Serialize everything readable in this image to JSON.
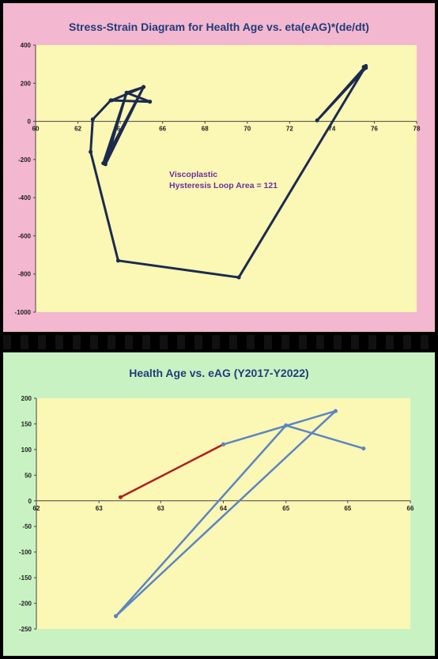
{
  "chart_data": [
    {
      "type": "line",
      "title": "Stress-Strain Diagram for Health Age vs. eta(eAG)*(de/dt)",
      "xlim": [
        60,
        78
      ],
      "ylim": [
        -1000,
        400
      ],
      "x_ticks": [
        60,
        62,
        64,
        66,
        68,
        70,
        72,
        74,
        76,
        78
      ],
      "y_ticks": [
        400,
        200,
        0,
        -200,
        -400,
        -600,
        -800,
        -1000
      ],
      "annotation": [
        "Viscoplastic",
        "Hysteresis Loop Area = 121"
      ],
      "grid": false,
      "colors": {
        "background": "#f3b7d0",
        "plot": "#fbf7b4",
        "line": "#1b2a4f"
      },
      "series": [
        {
          "points": [
            [
              65.4,
              103
            ],
            [
              63.55,
              110
            ],
            [
              62.7,
              10
            ],
            [
              62.6,
              -160
            ],
            [
              63.9,
              -730
            ],
            [
              69.6,
              -818
            ],
            [
              75.6,
              290
            ],
            [
              73.3,
              5
            ],
            [
              75.6,
              280
            ],
            [
              75.5,
              285
            ]
          ]
        },
        {
          "points": [
            [
              65.4,
              103
            ],
            [
              64.3,
              150
            ],
            [
              63.3,
              -225
            ],
            [
              65.1,
              180
            ],
            [
              63.2,
              -220
            ],
            [
              64.3,
              150
            ],
            [
              65.1,
              180
            ],
            [
              63.6,
              110
            ]
          ]
        }
      ]
    },
    {
      "type": "line",
      "title": "Health Age vs. eAG  (Y2017-Y2022)",
      "xlim": [
        62,
        66
      ],
      "ylim": [
        -250,
        200
      ],
      "x_ticks": [
        "62",
        "63",
        "63",
        "64",
        "65",
        "65",
        "66"
      ],
      "x_tick_values": [
        62,
        62.67,
        63.33,
        64,
        64.67,
        65.33,
        66
      ],
      "y_ticks": [
        200,
        150,
        100,
        50,
        0,
        -50,
        -100,
        -150,
        -200,
        -250
      ],
      "grid": false,
      "colors": {
        "background": "#c9f2c3",
        "plot": "#fbf7b4",
        "line": "#5b85c4",
        "highlight": "#b01e1e"
      },
      "series": [
        {
          "color": "#b01e1e",
          "points": [
            [
              62.9,
              7
            ],
            [
              64.0,
              110
            ]
          ]
        },
        {
          "color": "#5b85c4",
          "points": [
            [
              64.0,
              110
            ],
            [
              65.2,
              175
            ],
            [
              62.85,
              -225
            ],
            [
              64.67,
              147
            ],
            [
              65.5,
              102
            ],
            [
              64.67,
              147
            ],
            [
              62.85,
              -225
            ],
            [
              65.2,
              175
            ]
          ]
        }
      ]
    }
  ]
}
